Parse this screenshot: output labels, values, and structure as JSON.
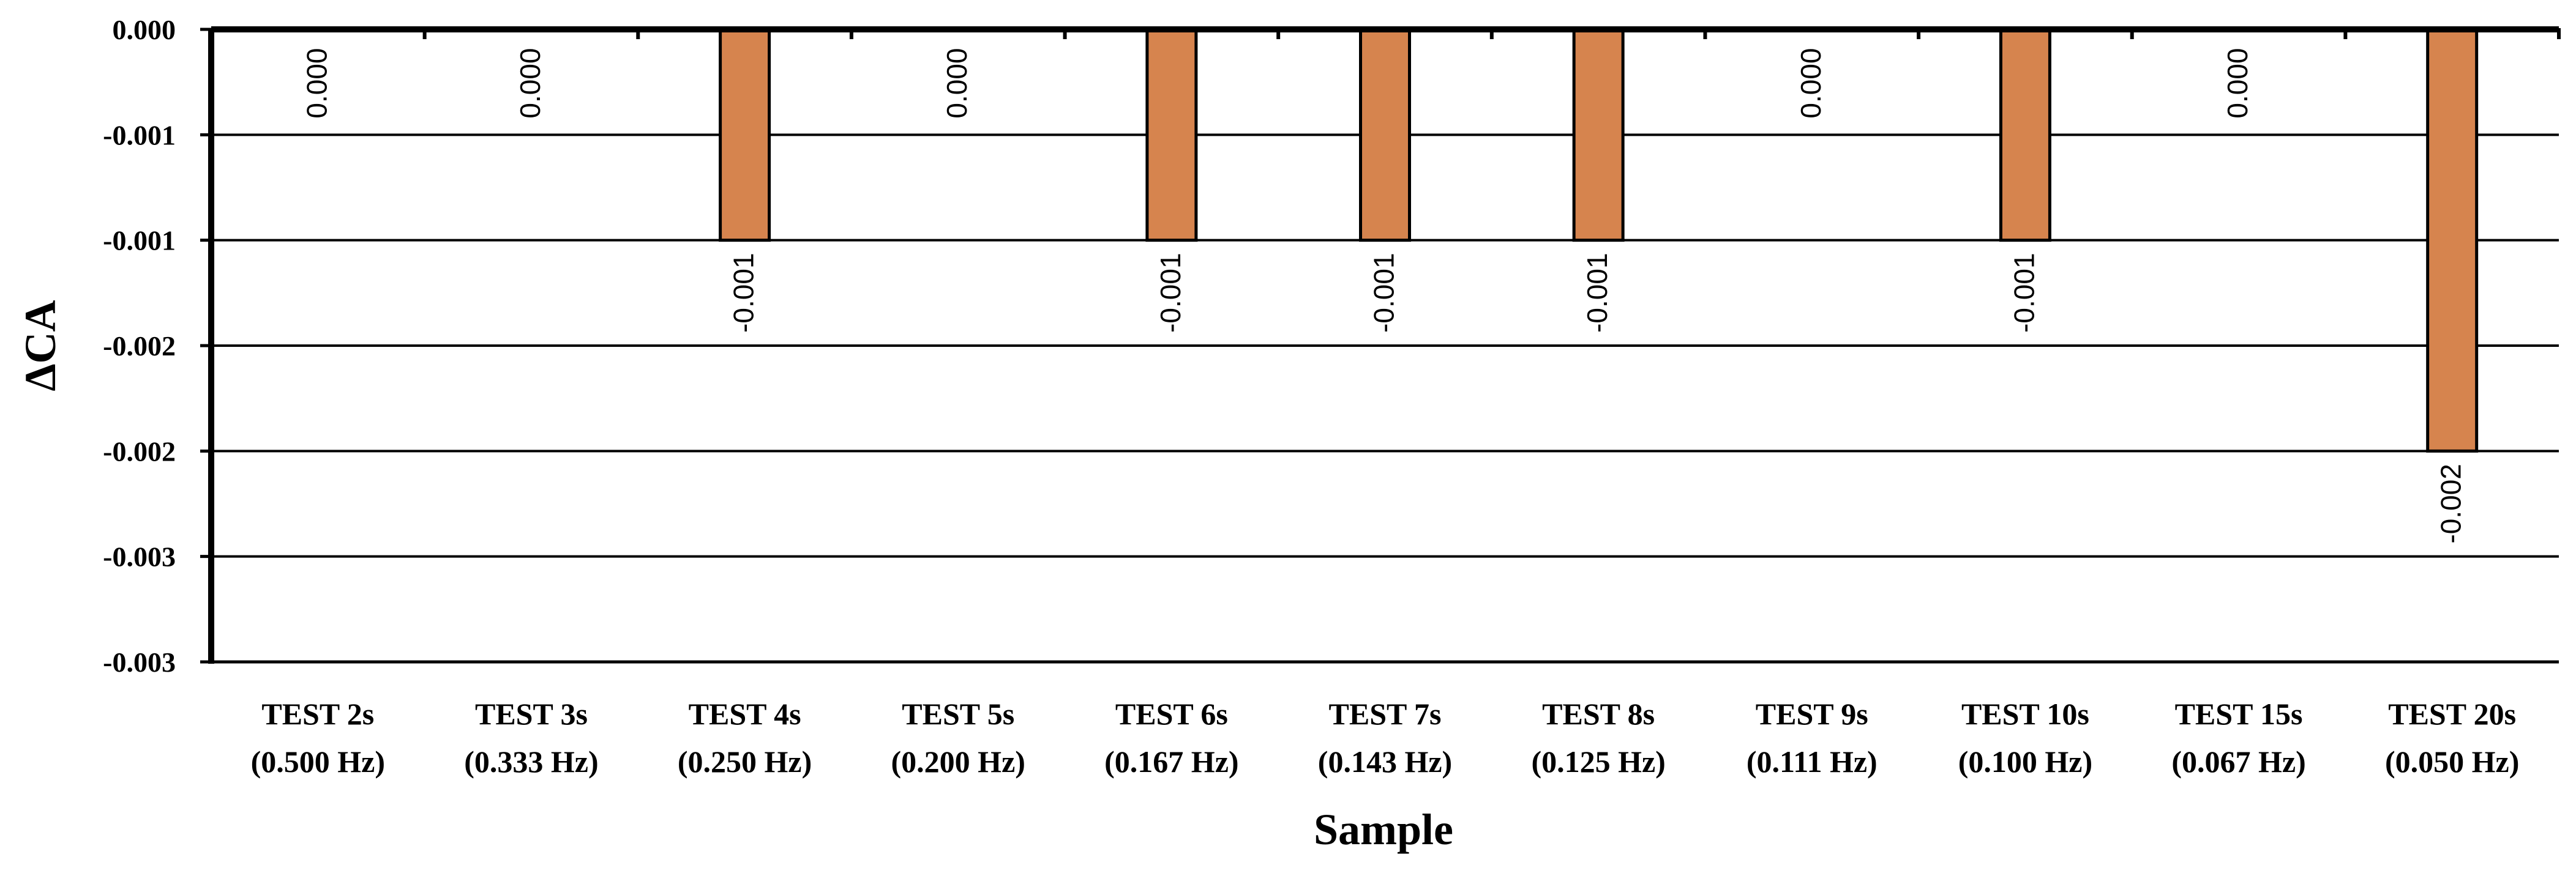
{
  "chart_data": {
    "type": "bar",
    "categories": [
      [
        "TEST 2s",
        "(0.500 Hz)"
      ],
      [
        "TEST 3s",
        "(0.333 Hz)"
      ],
      [
        "TEST 4s",
        "(0.250 Hz)"
      ],
      [
        "TEST 5s",
        "(0.200 Hz)"
      ],
      [
        "TEST 6s",
        "(0.167 Hz)"
      ],
      [
        "TEST 7s",
        "(0.143 Hz)"
      ],
      [
        "TEST 8s",
        "(0.125 Hz)"
      ],
      [
        "TEST 9s",
        "(0.111 Hz)"
      ],
      [
        "TEST 10s",
        "(0.100 Hz)"
      ],
      [
        "TEST 15s",
        "(0.067 Hz)"
      ],
      [
        "TEST 20s",
        "(0.050 Hz)"
      ]
    ],
    "values": [
      0,
      0,
      -0.001,
      0,
      -0.001,
      -0.001,
      -0.001,
      0,
      -0.001,
      0,
      -0.002
    ],
    "data_labels": [
      "0.000",
      "0.000",
      "-0.001",
      "0.000",
      "-0.001",
      "-0.001",
      "-0.001",
      "0.000",
      "-0.001",
      "0.000",
      "-0.002"
    ],
    "ytick_values": [
      0,
      -0.0005,
      -0.001,
      -0.0015,
      -0.002,
      -0.0025,
      -0.003
    ],
    "ytick_labels": [
      "0.000",
      "-0.001",
      "-0.001",
      "-0.002",
      "-0.002",
      "-0.003",
      "-0.003"
    ],
    "ylim": [
      -0.003,
      0
    ],
    "xlabel": "Sample",
    "ylabel": "ΔCA",
    "title": "",
    "grid": true,
    "bar_color": "#D6844E"
  }
}
